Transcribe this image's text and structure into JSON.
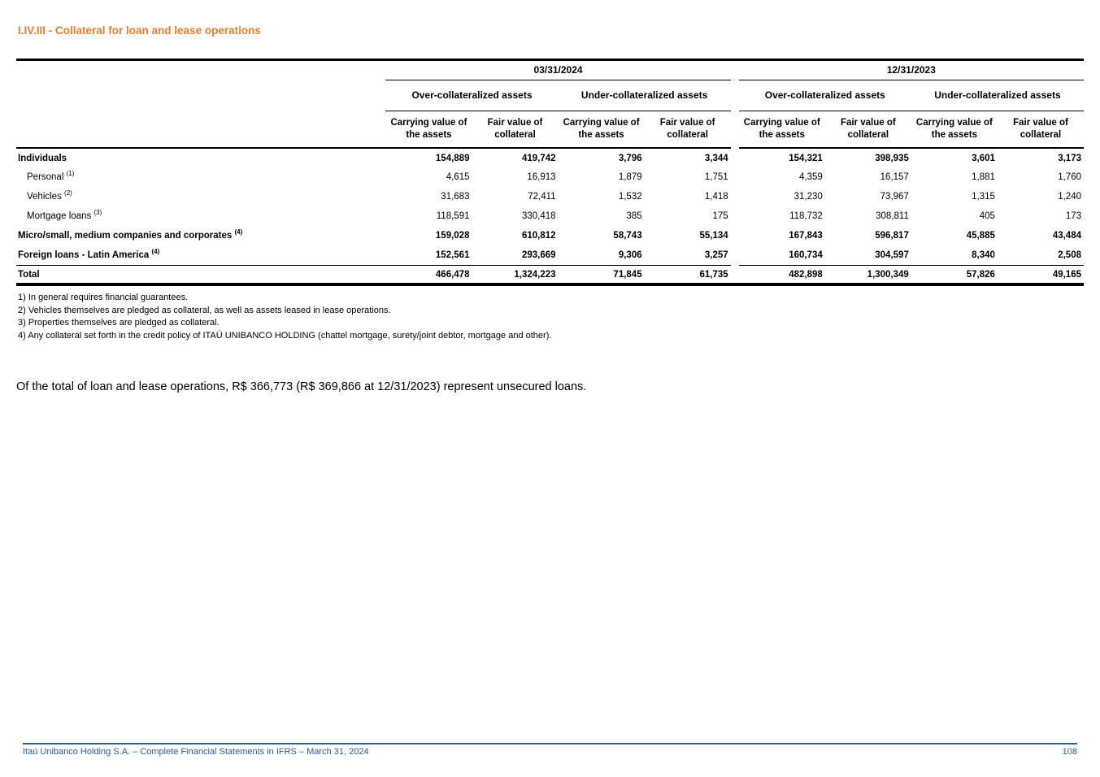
{
  "page": {
    "title": "I.IV.III - Collateral for loan and lease operations",
    "colors": {
      "accent_orange": "#ED7D31",
      "footer_blue": "#2E5B9D"
    }
  },
  "table": {
    "period_headers": [
      "03/31/2024",
      "12/31/2023"
    ],
    "group_headers": [
      "Over-collateralized assets",
      "Under-collateralized assets"
    ],
    "column_headers": [
      "Carrying value of the assets",
      "Fair value of collateral"
    ],
    "rows": [
      {
        "label": "Individuals",
        "sup": "",
        "values": [
          "154,889",
          "419,742",
          "3,796",
          "3,344",
          "154,321",
          "398,935",
          "3,601",
          "3,173"
        ]
      },
      {
        "label": "Personal",
        "sup": "(1)",
        "values": [
          "4,615",
          "16,913",
          "1,879",
          "1,751",
          "4,359",
          "16,157",
          "1,881",
          "1,760"
        ]
      },
      {
        "label": "Vehicles",
        "sup": "(2)",
        "values": [
          "31,683",
          "72,411",
          "1,532",
          "1,418",
          "31,230",
          "73,967",
          "1,315",
          "1,240"
        ]
      },
      {
        "label": "Mortgage loans",
        "sup": "(3)",
        "values": [
          "118,591",
          "330,418",
          "385",
          "175",
          "118,732",
          "308,811",
          "405",
          "173"
        ]
      },
      {
        "label": "Micro/small, medium companies and corporates",
        "sup": "(4)",
        "values": [
          "159,028",
          "610,812",
          "58,743",
          "55,134",
          "167,843",
          "596,817",
          "45,885",
          "43,484"
        ]
      },
      {
        "label": "Foreign loans - Latin America",
        "sup": "(4)",
        "values": [
          "152,561",
          "293,669",
          "9,306",
          "3,257",
          "160,734",
          "304,597",
          "8,340",
          "2,508"
        ]
      },
      {
        "label": "Total",
        "sup": "",
        "values": [
          "466,478",
          "1,324,223",
          "71,845",
          "61,735",
          "482,898",
          "1,300,349",
          "57,826",
          "49,165"
        ]
      }
    ]
  },
  "footnotes": [
    "1) In general requires financial guarantees.",
    "2) Vehicles themselves are pledged as collateral, as well as assets leased in lease operations.",
    "3) Properties themselves are pledged as collateral.",
    "4) Any collateral set forth in the credit policy of ITAÚ UNIBANCO HOLDING (chattel mortgage, surety/joint debtor, mortgage and other)."
  ],
  "body_text": "Of the total of loan and lease operations, R$ 366,773 (R$ 369,866 at 12/31/2023) represent unsecured loans.",
  "footer": {
    "left": "Itaú Unibanco Holding S.A. – Complete Financial Statements in IFRS – March 31, 2024",
    "page_number": "108"
  }
}
